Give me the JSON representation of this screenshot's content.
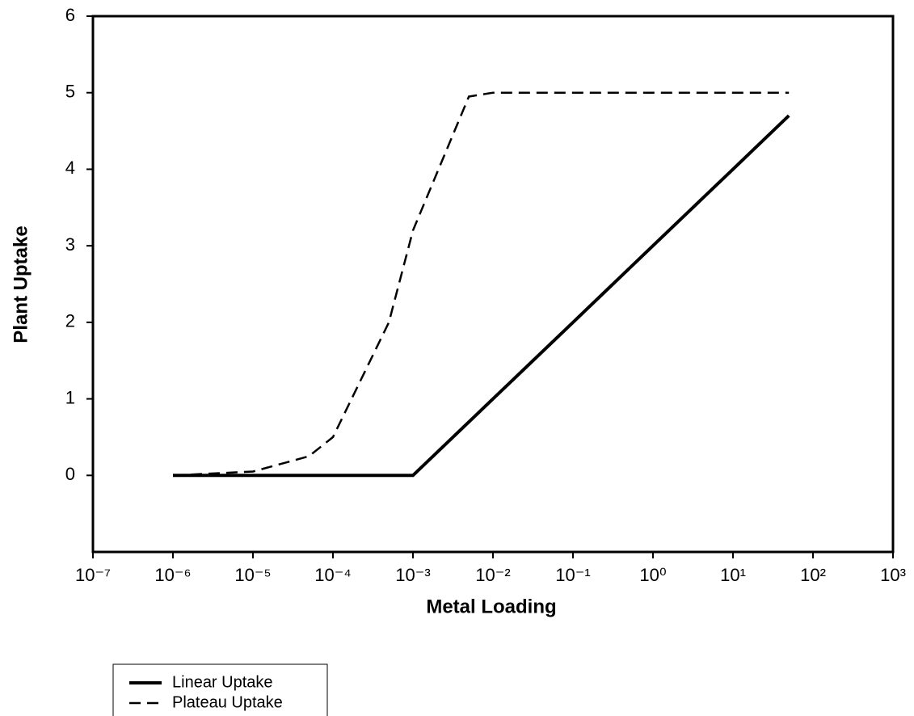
{
  "chart_data": {
    "type": "line",
    "xlabel": "Metal Loading",
    "ylabel": "Plant Uptake",
    "xscale": "log",
    "xlim": [
      1e-07,
      1000
    ],
    "xticks": [
      {
        "value": 1e-07,
        "label": "10⁻⁷"
      },
      {
        "value": 1e-06,
        "label": "10⁻⁶"
      },
      {
        "value": 1e-05,
        "label": "10⁻⁵"
      },
      {
        "value": 0.0001,
        "label": "10⁻⁴"
      },
      {
        "value": 0.001,
        "label": "10⁻³"
      },
      {
        "value": 0.01,
        "label": "10⁻²"
      },
      {
        "value": 0.1,
        "label": "10⁻¹"
      },
      {
        "value": 1,
        "label": "10⁰"
      },
      {
        "value": 10,
        "label": "10¹"
      },
      {
        "value": 100,
        "label": "10²"
      },
      {
        "value": 1000,
        "label": "10³"
      }
    ],
    "ylim": [
      -1,
      6
    ],
    "yticks": [
      0,
      1,
      2,
      3,
      4,
      5,
      6
    ],
    "series": [
      {
        "name": "Linear Uptake",
        "color": "#000000",
        "style": "solid",
        "x": [
          1e-06,
          0.001,
          0.01,
          0.1,
          1,
          10,
          50
        ],
        "values": [
          0,
          0,
          1,
          2,
          3,
          4,
          4.7
        ]
      },
      {
        "name": "Plateau Uptake",
        "color": "#000000",
        "style": "dashed",
        "x": [
          1e-06,
          1e-05,
          5e-05,
          0.0001,
          0.0005,
          0.001,
          0.005,
          0.01,
          50
        ],
        "values": [
          0,
          0.05,
          0.25,
          0.5,
          2,
          3.2,
          4.95,
          5,
          5
        ]
      }
    ]
  }
}
